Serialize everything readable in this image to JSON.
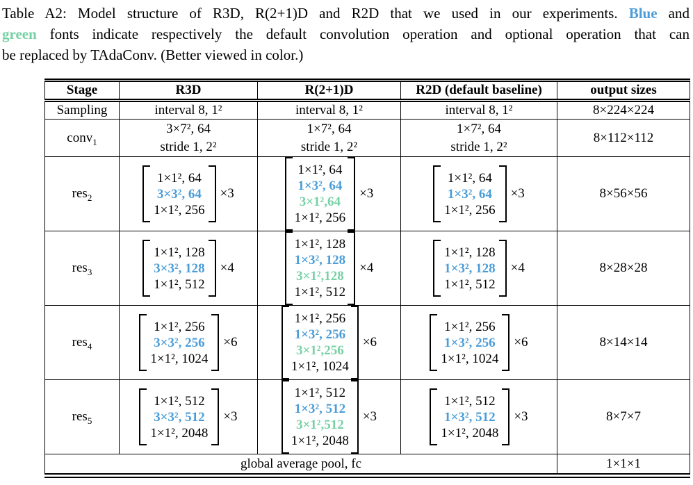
{
  "colors": {
    "blue": "#4a9dd8",
    "green": "#76d1a4"
  },
  "caption": {
    "line1_pre": "Table A2: Model structure of R3D, R(2+1)D and R2D that we used in our experiments.",
    "blue_word": "Blue",
    "line1_post": "and",
    "green_word": "green",
    "line2_rest": "fonts indicate respectively the default convolution operation and optional operation that can",
    "line3": "be replaced by TAdaConv. (Better viewed in color.)"
  },
  "header": {
    "stage": "Stage",
    "r3d": "R3D",
    "r21d": "R(2+1)D",
    "r2d": "R2D (default baseline)",
    "output": "output sizes"
  },
  "rows": {
    "sampling": {
      "stage": "Sampling",
      "r3d": "interval 8, 1²",
      "r21d": "interval 8, 1²",
      "r2d": "interval 8, 1²",
      "output": "8×224×224"
    },
    "conv1": {
      "stage": {
        "base": "conv",
        "sub": "1"
      },
      "r3d": [
        "3×7², 64",
        "stride 1, 2²"
      ],
      "r21d": [
        "1×7², 64",
        "stride 1, 2²"
      ],
      "r2d": [
        "1×7², 64",
        "stride 1, 2²"
      ],
      "output": "8×112×112"
    },
    "res2": {
      "stage": {
        "base": "res",
        "sub": "2"
      },
      "mult": "×3",
      "r3d": [
        {
          "t": "1×1², 64"
        },
        {
          "t": "3×3², 64",
          "c": "blue"
        },
        {
          "t": "1×1², 256"
        }
      ],
      "r21d": [
        {
          "t": "1×1², 64"
        },
        {
          "t": "1×3², 64",
          "c": "blue"
        },
        {
          "t": "3×1²,64",
          "c": "green"
        },
        {
          "t": "1×1², 256"
        }
      ],
      "r2d": [
        {
          "t": "1×1², 64"
        },
        {
          "t": "1×3², 64",
          "c": "blue"
        },
        {
          "t": "1×1², 256"
        }
      ],
      "output": "8×56×56"
    },
    "res3": {
      "stage": {
        "base": "res",
        "sub": "3"
      },
      "mult": "×4",
      "r3d": [
        {
          "t": "1×1², 128"
        },
        {
          "t": "3×3², 128",
          "c": "blue"
        },
        {
          "t": "1×1², 512"
        }
      ],
      "r21d": [
        {
          "t": "1×1², 128"
        },
        {
          "t": "1×3², 128",
          "c": "blue"
        },
        {
          "t": "3×1²,128",
          "c": "green"
        },
        {
          "t": "1×1², 512"
        }
      ],
      "r2d": [
        {
          "t": "1×1², 128"
        },
        {
          "t": "1×3², 128",
          "c": "blue"
        },
        {
          "t": "1×1², 512"
        }
      ],
      "output": "8×28×28"
    },
    "res4": {
      "stage": {
        "base": "res",
        "sub": "4"
      },
      "mult": "×6",
      "r3d": [
        {
          "t": "1×1², 256"
        },
        {
          "t": "3×3², 256",
          "c": "blue"
        },
        {
          "t": "1×1², 1024"
        }
      ],
      "r21d": [
        {
          "t": "1×1², 256"
        },
        {
          "t": "1×3², 256",
          "c": "blue"
        },
        {
          "t": "3×1²,256",
          "c": "green"
        },
        {
          "t": "1×1², 1024"
        }
      ],
      "r2d": [
        {
          "t": "1×1², 256"
        },
        {
          "t": "1×3², 256",
          "c": "blue"
        },
        {
          "t": "1×1², 1024"
        }
      ],
      "output": "8×14×14"
    },
    "res5": {
      "stage": {
        "base": "res",
        "sub": "5"
      },
      "mult": "×3",
      "r3d": [
        {
          "t": "1×1², 512"
        },
        {
          "t": "3×3², 512",
          "c": "blue"
        },
        {
          "t": "1×1², 2048"
        }
      ],
      "r21d": [
        {
          "t": "1×1², 512"
        },
        {
          "t": "1×3², 512",
          "c": "blue"
        },
        {
          "t": "3×1²,512",
          "c": "green"
        },
        {
          "t": "1×1², 2048"
        }
      ],
      "r2d": [
        {
          "t": "1×1², 512"
        },
        {
          "t": "1×3², 512",
          "c": "blue"
        },
        {
          "t": "1×1², 2048"
        }
      ],
      "output": "8×7×7"
    }
  },
  "footer": {
    "label": "global average pool, fc",
    "output": "1×1×1"
  }
}
